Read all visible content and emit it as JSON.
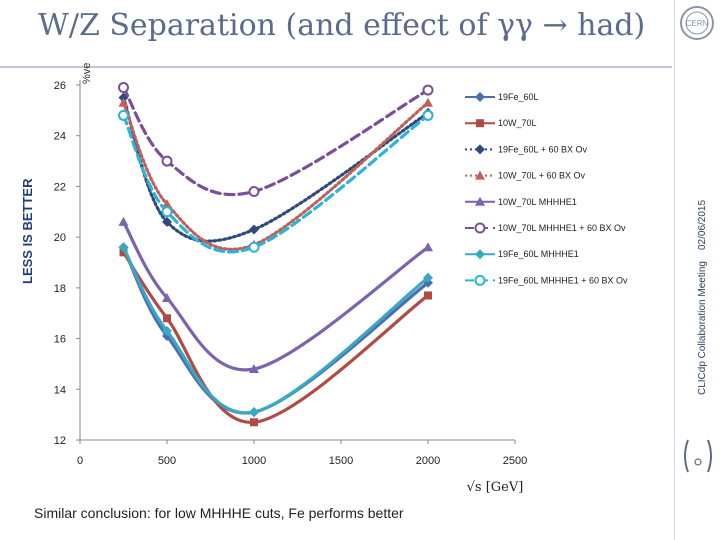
{
  "slide": {
    "title": "W/Z Separation (and effect of γγ → had)",
    "footer": "Similar conclusion: for low MHHHE cuts, Fe performs better",
    "sidebar_meeting": "CLICdp Collaboration Meeting",
    "sidebar_date": "02/06/2015"
  },
  "chart_data": {
    "type": "line",
    "ylabel": "LESS IS BETTER",
    "yunit": "%ve",
    "xlabel": "√s [GeV]",
    "xlim": [
      0,
      2500
    ],
    "ylim": [
      12,
      26
    ],
    "xticks": [
      0,
      500,
      1000,
      1500,
      2000,
      2500
    ],
    "yticks": [
      12,
      14,
      16,
      18,
      20,
      22,
      24,
      26
    ],
    "x": [
      250,
      500,
      1000,
      2000
    ],
    "series": [
      {
        "name": "19Fe_60L",
        "values": [
          19.6,
          16.1,
          13.1,
          18.2
        ],
        "color": "#4a6fb0",
        "dash": "solid",
        "marker": "diamond"
      },
      {
        "name": "10W_70L",
        "values": [
          19.4,
          16.8,
          12.7,
          17.7
        ],
        "color": "#b04a42",
        "dash": "solid",
        "marker": "square"
      },
      {
        "name": "19Fe_60L + 60 BX Ov",
        "values": [
          25.5,
          20.6,
          20.3,
          24.9
        ],
        "color": "#2e4a7a",
        "dash": "dot",
        "marker": "diamond"
      },
      {
        "name": "10W_70L + 60 BX Ov",
        "values": [
          25.3,
          21.3,
          19.7,
          25.3
        ],
        "color": "#c0605a",
        "dash": "dot",
        "marker": "triangle"
      },
      {
        "name": "10W_70L MHHHE1",
        "values": [
          20.6,
          17.6,
          14.8,
          19.6
        ],
        "color": "#7b63ad",
        "dash": "solid",
        "marker": "triangle"
      },
      {
        "name": "10W_70L MHHHE1 + 60 BX Ov",
        "values": [
          25.9,
          23.0,
          21.8,
          25.8
        ],
        "color": "#7a4f9a",
        "dash": "dash",
        "marker": "circle"
      },
      {
        "name": "19Fe_60L MHHHE1",
        "values": [
          19.6,
          16.3,
          13.1,
          18.4
        ],
        "color": "#3aa7c4",
        "dash": "solid",
        "marker": "diamond"
      },
      {
        "name": "19Fe_60L MHHHE1 + 60 BX Ov",
        "values": [
          24.8,
          21.0,
          19.6,
          24.8
        ],
        "color": "#2bb3d9",
        "dash": "dash",
        "marker": "circle"
      }
    ]
  }
}
